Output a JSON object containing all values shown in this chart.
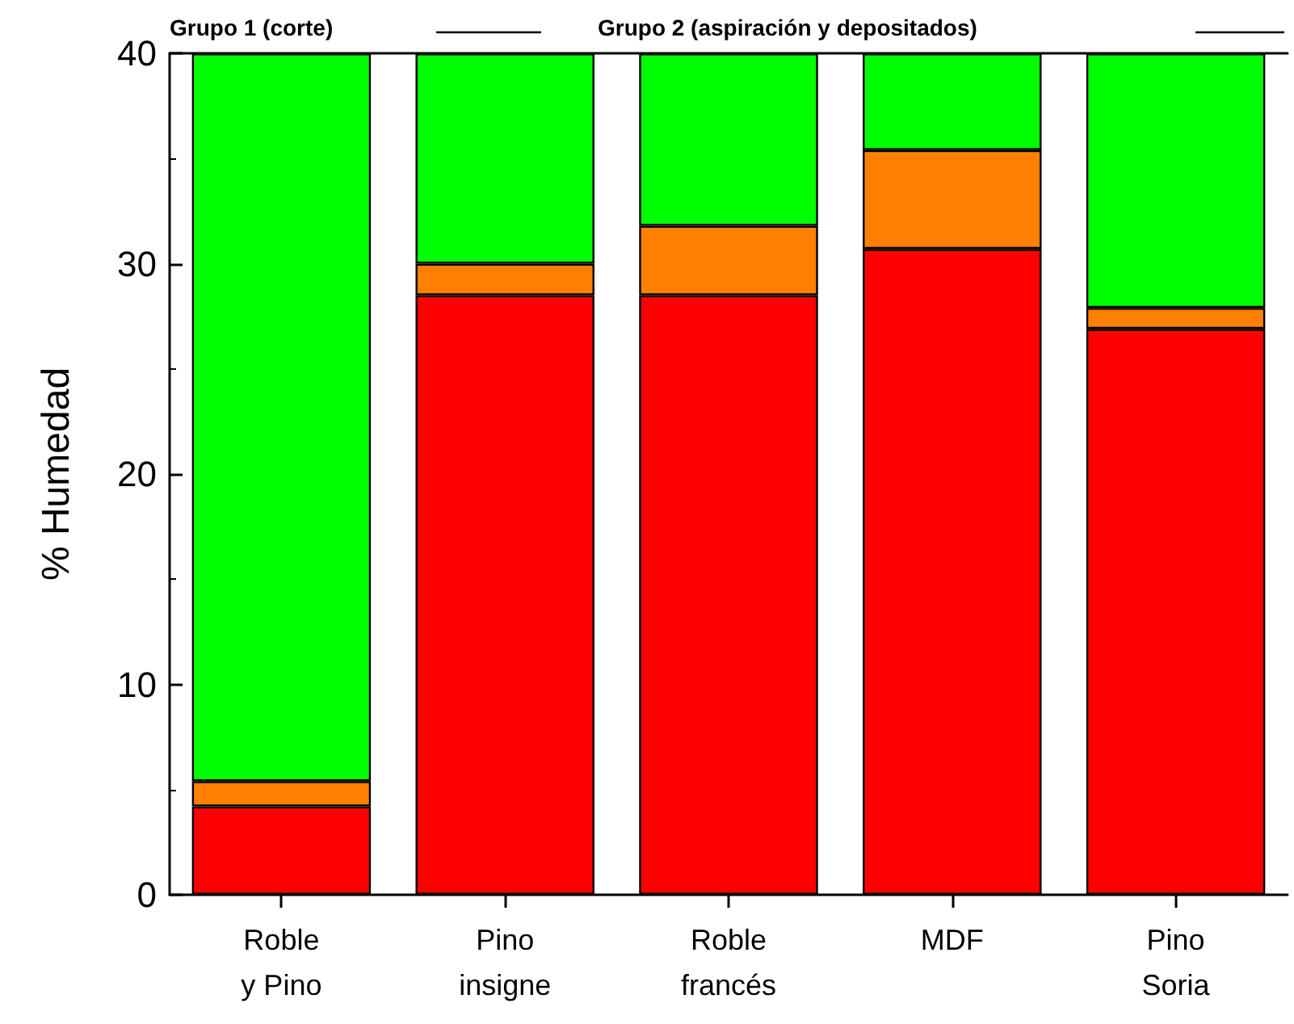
{
  "chart_data": {
    "type": "bar",
    "stacked": true,
    "ylabel": "% Humedad",
    "categories": [
      "Roble\ny Pino",
      "Pino\ninsigne",
      "Roble\nfrancés",
      "MDF",
      "Pino\nSoria"
    ],
    "series": [
      {
        "color": "#ff0000",
        "values": [
          4.2,
          28.5,
          28.5,
          30.7,
          26.9
        ]
      },
      {
        "color": "#ff8000",
        "values": [
          1.2,
          1.5,
          3.3,
          4.7,
          1.0
        ]
      },
      {
        "color": "#00ff00",
        "values": [
          34.6,
          10.0,
          8.2,
          4.6,
          12.1
        ]
      }
    ],
    "ylim": [
      0,
      40
    ],
    "yticks": [
      0,
      10,
      20,
      30,
      40
    ],
    "grid": false,
    "annotations": [
      "Grupo 1 (corte)",
      "Grupo 2 (aspiración y depositados)"
    ]
  }
}
